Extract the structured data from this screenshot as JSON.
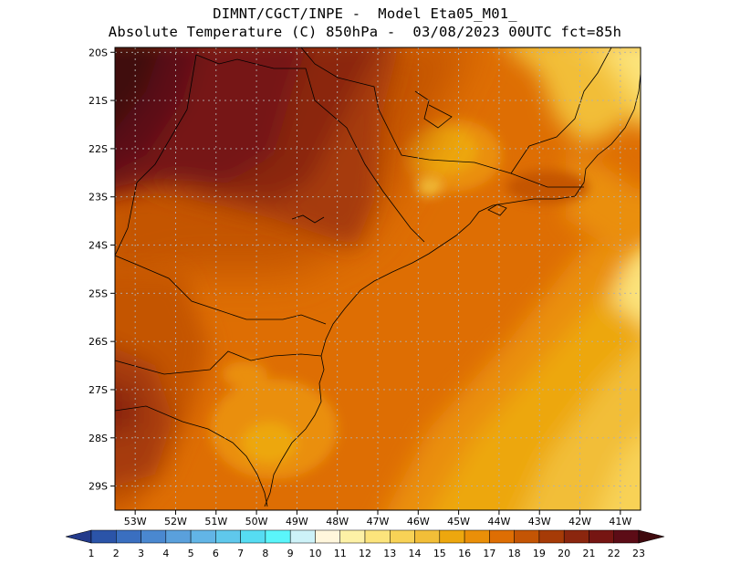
{
  "header": {
    "line1": "DIMNT/CGCT/INPE -  Model Eta05_M01_",
    "line2": "Absolute Temperature (C) 850hPa -  03/08/2023 00UTC fct=85h"
  },
  "map": {
    "lon_range": [
      -53.5,
      -40.5
    ],
    "lat_range": [
      -29.5,
      -19.9
    ],
    "lat_ticks": [
      {
        "value": -20,
        "label": "20S"
      },
      {
        "value": -21,
        "label": "21S"
      },
      {
        "value": -22,
        "label": "22S"
      },
      {
        "value": -23,
        "label": "23S"
      },
      {
        "value": -24,
        "label": "24S"
      },
      {
        "value": -25,
        "label": "25S"
      },
      {
        "value": -26,
        "label": "26S"
      },
      {
        "value": -27,
        "label": "27S"
      },
      {
        "value": -28,
        "label": "28S"
      },
      {
        "value": -29,
        "label": "29S"
      }
    ],
    "lon_ticks": [
      {
        "value": -53,
        "label": "53W"
      },
      {
        "value": -52,
        "label": "52W"
      },
      {
        "value": -51,
        "label": "51W"
      },
      {
        "value": -50,
        "label": "50W"
      },
      {
        "value": -49,
        "label": "49W"
      },
      {
        "value": -48,
        "label": "48W"
      },
      {
        "value": -47,
        "label": "47W"
      },
      {
        "value": -46,
        "label": "46W"
      },
      {
        "value": -45,
        "label": "45W"
      },
      {
        "value": -44,
        "label": "44W"
      },
      {
        "value": -43,
        "label": "43W"
      },
      {
        "value": -42,
        "label": "42W"
      },
      {
        "value": -41,
        "label": "41W"
      }
    ]
  },
  "colorbar": {
    "labels": [
      "1",
      "2",
      "3",
      "4",
      "5",
      "6",
      "7",
      "8",
      "9",
      "10",
      "11",
      "12",
      "13",
      "14",
      "15",
      "16",
      "17",
      "18",
      "19",
      "20",
      "21",
      "22",
      "23"
    ],
    "colors": [
      "#233a8b",
      "#2b54a8",
      "#3a6fc0",
      "#4a88d0",
      "#5aa0dc",
      "#62b5e6",
      "#5fc8ec",
      "#56dcf2",
      "#5af5fa",
      "#cdf2f8",
      "#fff6dc",
      "#fdf1a6",
      "#fce47c",
      "#f8d256",
      "#f2be38",
      "#eda70e",
      "#ea8f08",
      "#de6e03",
      "#c45504",
      "#a63b07",
      "#8b260e",
      "#761512",
      "#5c0c16",
      "#3f0a0e"
    ]
  }
}
